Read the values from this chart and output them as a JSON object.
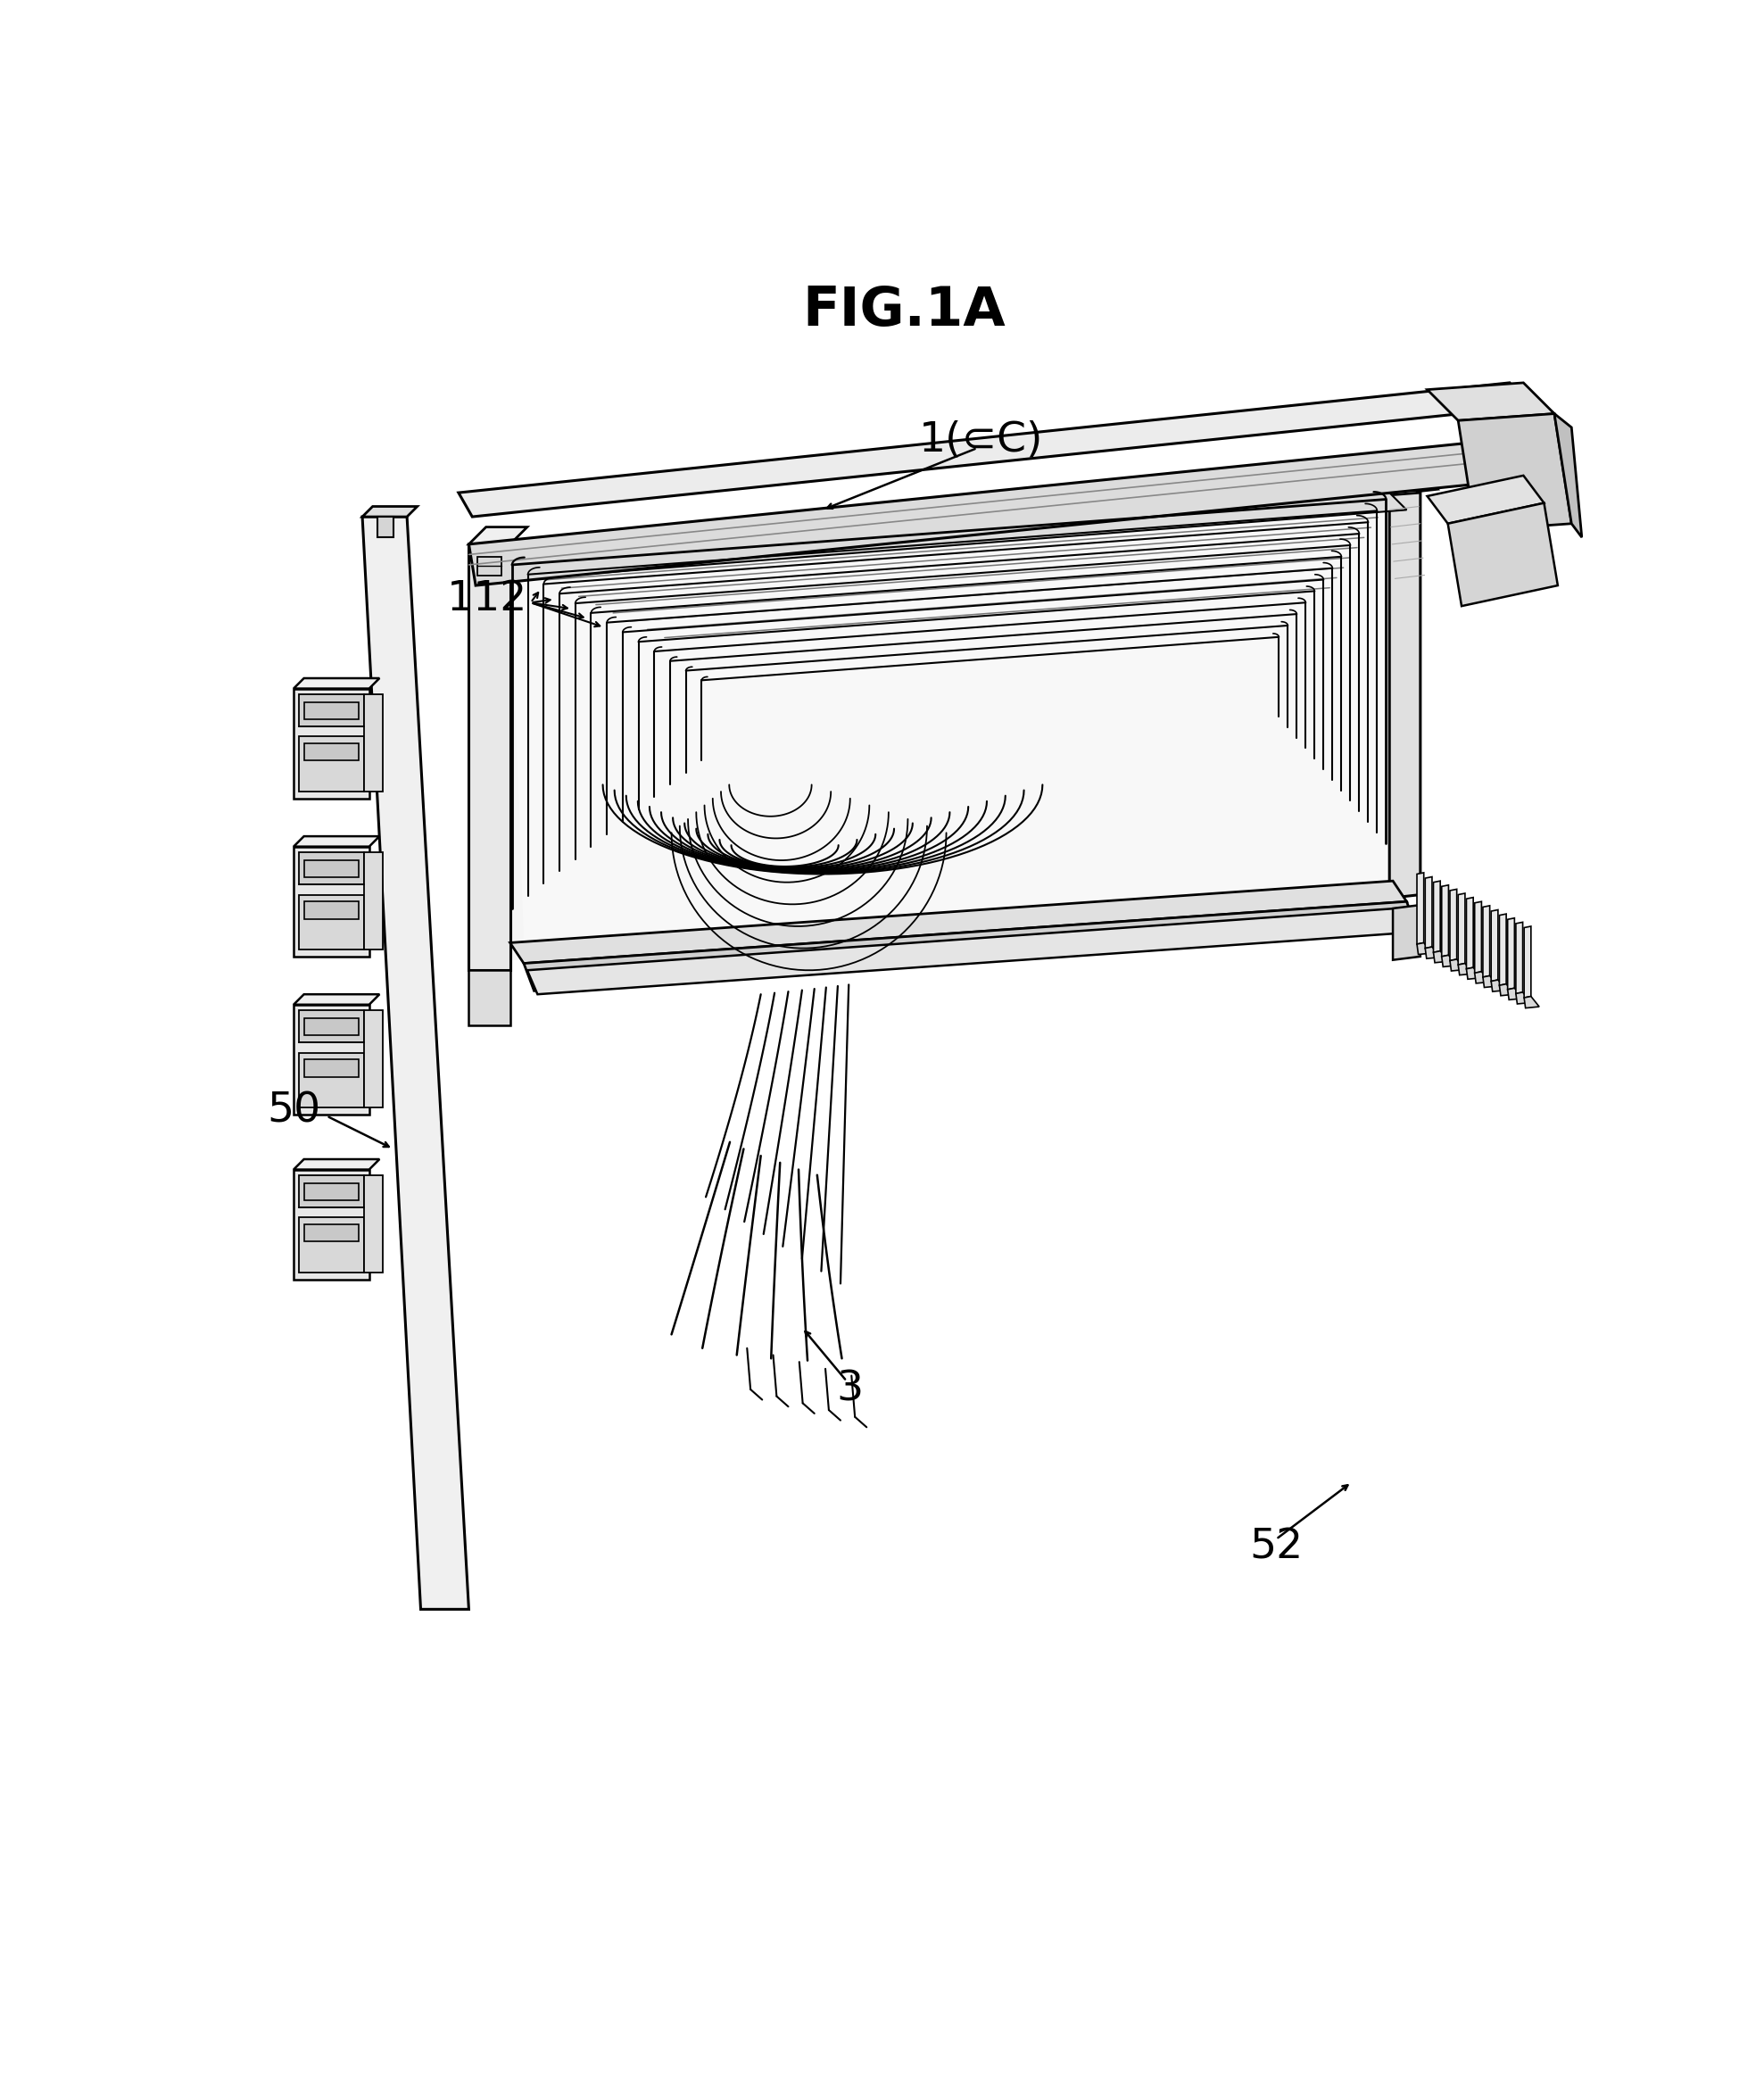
{
  "title": "FIG.1A",
  "bg": "#ffffff",
  "lc": "#000000",
  "labels": {
    "fig": "FIG.1A",
    "ref1": "1(⊂C)",
    "ref112": "112",
    "ref50": "50",
    "ref3": "3",
    "ref52": "52"
  }
}
